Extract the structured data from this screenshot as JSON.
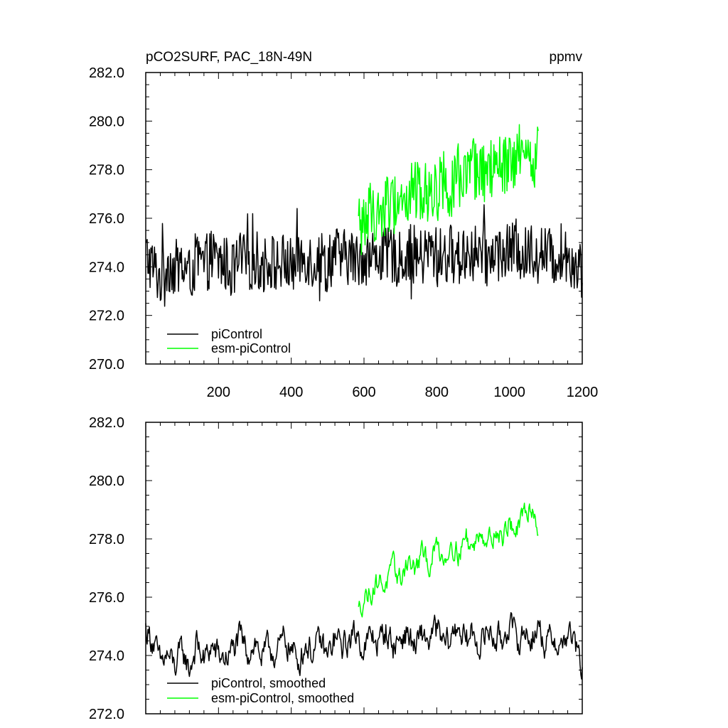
{
  "chart_data": [
    {
      "type": "line",
      "title": "pCO2SURF, PAC_18N-49N",
      "units": "ppmv",
      "xlim": [
        0,
        1200
      ],
      "ylim": [
        270,
        282
      ],
      "xticks": [
        200,
        400,
        600,
        800,
        1000,
        1200
      ],
      "yticks": [
        270.0,
        272.0,
        274.0,
        276.0,
        278.0,
        280.0,
        282.0
      ],
      "ytick_labels": [
        "270.0",
        "272.0",
        "274.0",
        "276.0",
        "278.0",
        "280.0",
        "282.0"
      ],
      "xtick_labels": [
        "200",
        "400",
        "600",
        "800",
        "1000",
        "1200"
      ],
      "legend_position": "bottom-left",
      "series": [
        {
          "name": "piControl",
          "color": "#000000",
          "x": [
            0,
            20,
            40,
            60,
            80,
            100,
            120,
            140,
            160,
            180,
            200,
            220,
            240,
            260,
            280,
            300,
            320,
            340,
            360,
            380,
            400,
            420,
            440,
            460,
            480,
            500,
            520,
            540,
            560,
            580,
            600,
            620,
            640,
            660,
            680,
            700,
            720,
            740,
            760,
            780,
            800,
            820,
            840,
            860,
            880,
            900,
            920,
            940,
            960,
            980,
            1000,
            1020,
            1040,
            1060,
            1080,
            1100,
            1120,
            1140,
            1160,
            1180,
            1200
          ],
          "y": [
            274.5,
            274.0,
            273.5,
            274.2,
            273.9,
            274.1,
            273.6,
            274.3,
            274.0,
            274.4,
            274.2,
            274.1,
            273.8,
            274.3,
            274.1,
            274.4,
            274.0,
            274.3,
            274.1,
            274.2,
            274.0,
            274.3,
            274.5,
            274.2,
            274.4,
            274.1,
            274.6,
            274.3,
            274.5,
            274.2,
            274.5,
            274.3,
            274.6,
            274.4,
            274.5,
            274.2,
            274.6,
            274.5,
            274.3,
            274.7,
            274.5,
            274.4,
            274.6,
            274.3,
            274.8,
            274.5,
            274.6,
            274.3,
            274.7,
            274.5,
            274.6,
            274.8,
            274.4,
            274.7,
            274.5,
            274.6,
            274.3,
            274.6,
            274.5,
            274.2,
            273.8
          ],
          "noise": 1.2
        },
        {
          "name": "esm-piControl",
          "color": "#00ff00",
          "x": [
            585,
            600,
            620,
            640,
            660,
            680,
            700,
            720,
            740,
            760,
            780,
            800,
            820,
            840,
            860,
            880,
            900,
            920,
            940,
            960,
            980,
            1000,
            1020,
            1040,
            1060,
            1080
          ],
          "y": [
            275.5,
            275.9,
            276.3,
            276.1,
            276.6,
            276.5,
            276.9,
            276.7,
            277.2,
            277.0,
            277.4,
            277.1,
            277.6,
            277.3,
            277.8,
            277.5,
            278.0,
            277.6,
            278.1,
            277.8,
            278.2,
            278.0,
            278.4,
            278.3,
            278.6,
            278.5
          ],
          "noise": 1.3
        }
      ]
    },
    {
      "type": "line",
      "xlim": [
        0,
        1200
      ],
      "ylim": [
        272,
        282
      ],
      "yticks": [
        272.0,
        274.0,
        276.0,
        278.0,
        280.0,
        282.0
      ],
      "ytick_labels": [
        "272.0",
        "274.0",
        "276.0",
        "278.0",
        "280.0",
        "282.0"
      ],
      "legend_position": "bottom-left",
      "series": [
        {
          "name": "piControl, smoothed",
          "color": "#000000",
          "x": [
            0,
            20,
            40,
            60,
            80,
            100,
            120,
            140,
            160,
            180,
            200,
            220,
            240,
            260,
            280,
            300,
            320,
            340,
            360,
            380,
            400,
            420,
            440,
            460,
            480,
            500,
            520,
            540,
            560,
            580,
            600,
            620,
            640,
            660,
            680,
            700,
            720,
            740,
            760,
            780,
            800,
            820,
            840,
            860,
            880,
            900,
            920,
            940,
            960,
            980,
            1000,
            1020,
            1040,
            1060,
            1080,
            1100,
            1120,
            1140,
            1160,
            1180,
            1200
          ],
          "y": [
            274.9,
            274.5,
            273.7,
            274.0,
            273.6,
            274.2,
            273.5,
            274.4,
            273.8,
            274.3,
            274.0,
            273.9,
            274.2,
            274.6,
            274.1,
            274.5,
            273.9,
            274.3,
            274.0,
            274.6,
            274.2,
            273.8,
            274.4,
            274.1,
            274.5,
            273.9,
            274.6,
            274.3,
            274.5,
            274.8,
            274.2,
            274.7,
            274.4,
            274.9,
            274.3,
            274.6,
            274.8,
            274.2,
            274.7,
            274.5,
            274.9,
            274.3,
            274.6,
            275.1,
            274.4,
            274.8,
            274.3,
            274.9,
            274.6,
            274.5,
            275.2,
            274.4,
            274.8,
            274.6,
            275.0,
            274.3,
            274.7,
            274.2,
            274.8,
            274.4,
            273.4
          ],
          "noise": 0.45
        },
        {
          "name": "esm-piControl, smoothed",
          "color": "#00ff00",
          "x": [
            585,
            600,
            620,
            640,
            660,
            680,
            700,
            720,
            740,
            760,
            780,
            800,
            820,
            840,
            860,
            880,
            900,
            920,
            940,
            960,
            980,
            1000,
            1020,
            1040,
            1060,
            1080
          ],
          "y": [
            275.5,
            276.0,
            276.2,
            276.6,
            276.4,
            277.0,
            276.6,
            277.3,
            276.9,
            277.5,
            277.1,
            277.8,
            277.3,
            277.9,
            277.5,
            278.1,
            277.6,
            278.4,
            277.9,
            278.3,
            278.0,
            278.6,
            278.2,
            278.8,
            279.2,
            278.3
          ],
          "noise": 0.35
        }
      ]
    }
  ]
}
